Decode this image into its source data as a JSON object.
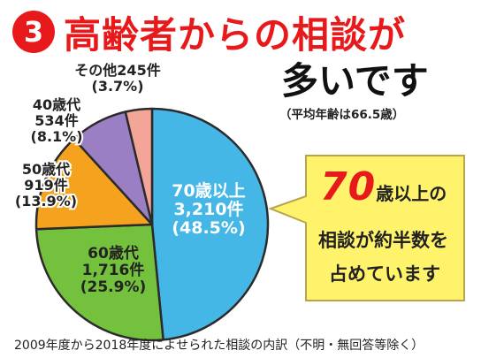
{
  "badge_number": "3",
  "title": "高齢者からの相談が",
  "title_line2": "多いです",
  "average_age": "（平均年齢は66.5歳）",
  "callout": {
    "big": "70",
    "line1_rest": "歳以上の",
    "line2": "相談が約半数を",
    "line3": "占めています"
  },
  "footnote": "2009年度から2018年度によせられた相談の内訳（不明・無回答等除く）",
  "colors": {
    "title_red": "#e8191b",
    "badge_red": "#e8191b",
    "slice_70": "#45b7e6",
    "slice_60": "#74c13d",
    "slice_50": "#f5a31f",
    "slice_40": "#9a7fc4",
    "slice_other": "#f3a597",
    "callout_fill": "#fff36b",
    "callout_border": "#b8a44a",
    "outline": "#2b2b2b",
    "big_number": "#e8191b"
  },
  "chart_data": {
    "type": "pie",
    "slices": [
      {
        "name": "70歳以上",
        "count_label": "3,210件",
        "value": 3210,
        "percent_label": "(48.5%)",
        "color_key": "slice_70"
      },
      {
        "name": "60歳代",
        "count_label": "1,716件",
        "value": 1716,
        "percent_label": "(25.9%)",
        "color_key": "slice_60"
      },
      {
        "name": "50歳代",
        "count_label": "919件",
        "value": 919,
        "percent_label": "(13.9%)",
        "color_key": "slice_50"
      },
      {
        "name": "40歳代",
        "count_label": "534件",
        "value": 534,
        "percent_label": "(8.1%)",
        "color_key": "slice_40"
      },
      {
        "name": "その他",
        "count_label": "245件",
        "value": 245,
        "percent_label": "(3.7%)",
        "color_key": "slice_other"
      }
    ]
  }
}
